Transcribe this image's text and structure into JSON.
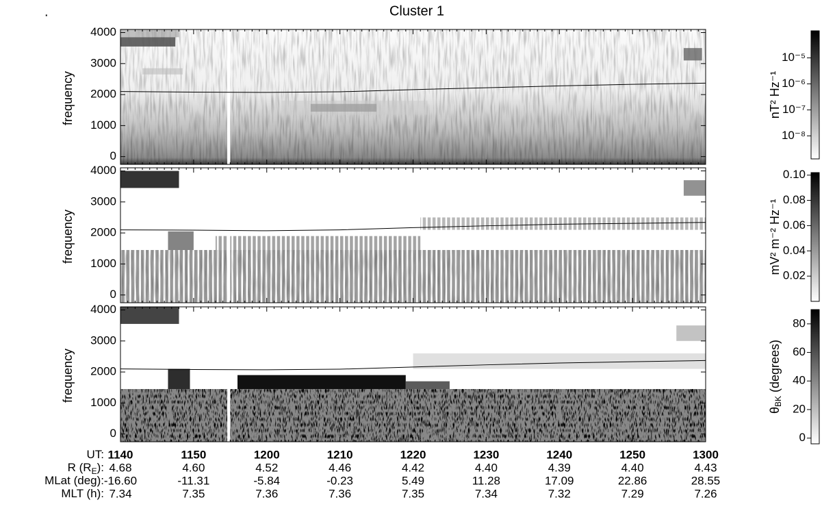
{
  "corner_text": ".",
  "chart_data": [
    {
      "type": "spectrogram",
      "title": "Cluster 1",
      "ylabel": "frequency",
      "ylim": [
        -250,
        4100
      ],
      "yticks": [
        0,
        1000,
        2000,
        3000,
        4000
      ],
      "line": {
        "color": "#000000",
        "values": [
          2100,
          2080,
          2070,
          2090,
          2160,
          2220,
          2280,
          2330,
          2370
        ]
      },
      "colorbar": {
        "label": {
          "text": "nT² Hz⁻¹"
        },
        "log": true,
        "lim": [
          1.3e-09,
          0.00011
        ],
        "ticks": [
          {
            "value": 1e-08,
            "label": "10⁻⁸"
          },
          {
            "value": 1e-07,
            "label": "10⁻⁷"
          },
          {
            "value": 1e-06,
            "label": "10⁻⁶"
          },
          {
            "value": 1e-05,
            "label": "10⁻⁵"
          }
        ]
      }
    },
    {
      "type": "spectrogram",
      "ylabel": "frequency",
      "ylim": [
        -250,
        4100
      ],
      "yticks": [
        0,
        1000,
        2000,
        3000,
        4000
      ],
      "line": {
        "color": "#000000",
        "values": [
          2100,
          2090,
          2070,
          2100,
          2170,
          2230,
          2280,
          2310,
          2340
        ]
      },
      "colorbar": {
        "label": {
          "text": "mV² m⁻² Hz⁻¹"
        },
        "log": false,
        "lim": [
          0,
          0.102
        ],
        "ticks": [
          0.02,
          0.04,
          0.06,
          0.08,
          {
            "value": 0.1,
            "label": "0.10"
          }
        ]
      }
    },
    {
      "type": "spectrogram",
      "ylabel": "frequency",
      "ylim": [
        -250,
        4100
      ],
      "yticks": [
        0,
        1000,
        2000,
        3000,
        4000
      ],
      "line": {
        "color": "#000000",
        "values": [
          2100,
          2080,
          2070,
          2090,
          2160,
          2230,
          2290,
          2330,
          2370
        ]
      },
      "colorbar": {
        "label": {
          "text": "θ",
          "sub": "BK",
          "after": " (degrees)"
        },
        "log": false,
        "lim": [
          -4,
          90
        ],
        "ticks": [
          0,
          20,
          40,
          60,
          80
        ]
      }
    }
  ],
  "ephemeris": {
    "rows": [
      {
        "label": {
          "text": "UT:"
        },
        "values": [
          "1140",
          "1150",
          "1200",
          "1210",
          "1220",
          "1230",
          "1240",
          "1250",
          "1300"
        ]
      },
      {
        "label": {
          "text": "R (R",
          "sub": "E",
          "after": "):"
        },
        "values": [
          "4.68",
          "4.60",
          "4.52",
          "4.46",
          "4.42",
          "4.40",
          "4.39",
          "4.40",
          "4.43"
        ]
      },
      {
        "label": {
          "text": "MLat (deg):"
        },
        "values": [
          "-16.60",
          "-11.31",
          "-5.84",
          "-0.23",
          "5.49",
          "11.28",
          "17.09",
          "22.86",
          "28.55"
        ]
      },
      {
        "label": {
          "text": "MLT (h):"
        },
        "values": [
          "7.34",
          "7.35",
          "7.36",
          "7.36",
          "7.35",
          "7.34",
          "7.32",
          "7.29",
          "7.26"
        ]
      }
    ]
  }
}
